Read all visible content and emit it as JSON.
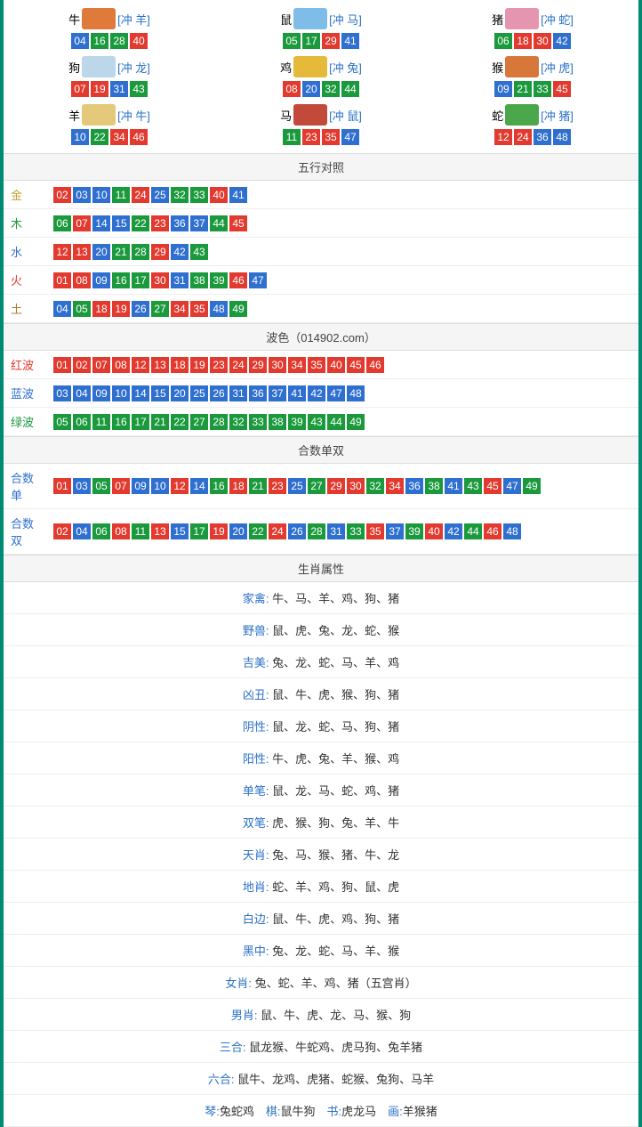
{
  "colors": {
    "red": "#e23a2f",
    "blue": "#2e6fd0",
    "green": "#1a9a3c",
    "page_border": "#008a72",
    "bg": "#ffffff",
    "header_bg": "#f5f5f5",
    "grid_border": "#dddddd",
    "text": "#333333",
    "link": "#2b71c7"
  },
  "num_colors": {
    "01": "red",
    "02": "red",
    "07": "red",
    "08": "red",
    "12": "red",
    "13": "red",
    "18": "red",
    "19": "red",
    "23": "red",
    "24": "red",
    "29": "red",
    "30": "red",
    "34": "red",
    "35": "red",
    "40": "red",
    "45": "red",
    "46": "red",
    "03": "blue",
    "04": "blue",
    "09": "blue",
    "10": "blue",
    "14": "blue",
    "15": "blue",
    "20": "blue",
    "25": "blue",
    "26": "blue",
    "31": "blue",
    "36": "blue",
    "37": "blue",
    "41": "blue",
    "42": "blue",
    "47": "blue",
    "48": "blue",
    "05": "green",
    "06": "green",
    "11": "green",
    "16": "green",
    "17": "green",
    "21": "green",
    "22": "green",
    "27": "green",
    "28": "green",
    "32": "green",
    "33": "green",
    "38": "green",
    "39": "green",
    "43": "green",
    "44": "green",
    "49": "green"
  },
  "zodiac": [
    {
      "label": "牛",
      "clash": "[冲 羊]",
      "icon_color": "#e07a3a",
      "nums": [
        "04",
        "16",
        "28",
        "40"
      ]
    },
    {
      "label": "鼠",
      "clash": "[冲 马]",
      "icon_color": "#7dbde8",
      "nums": [
        "05",
        "17",
        "29",
        "41"
      ]
    },
    {
      "label": "猪",
      "clash": "[冲 蛇]",
      "icon_color": "#e695b0",
      "nums": [
        "06",
        "18",
        "30",
        "42"
      ]
    },
    {
      "label": "狗",
      "clash": "[冲 龙]",
      "icon_color": "#bcd6ea",
      "nums": [
        "07",
        "19",
        "31",
        "43"
      ]
    },
    {
      "label": "鸡",
      "clash": "[冲 兔]",
      "icon_color": "#e5b93a",
      "nums": [
        "08",
        "20",
        "32",
        "44"
      ]
    },
    {
      "label": "猴",
      "clash": "[冲 虎]",
      "icon_color": "#d7773a",
      "nums": [
        "09",
        "21",
        "33",
        "45"
      ]
    },
    {
      "label": "羊",
      "clash": "[冲 牛]",
      "icon_color": "#e5c97a",
      "nums": [
        "10",
        "22",
        "34",
        "46"
      ]
    },
    {
      "label": "马",
      "clash": "[冲 鼠]",
      "icon_color": "#c24a3a",
      "nums": [
        "11",
        "23",
        "35",
        "47"
      ]
    },
    {
      "label": "蛇",
      "clash": "[冲 猪]",
      "icon_color": "#4aa84a",
      "nums": [
        "12",
        "24",
        "36",
        "48"
      ]
    }
  ],
  "sections": [
    {
      "title": "五行对照",
      "rows": [
        {
          "label": "金",
          "label_color": "#c8a03a",
          "nums": [
            "02",
            "03",
            "10",
            "11",
            "24",
            "25",
            "32",
            "33",
            "40",
            "41"
          ]
        },
        {
          "label": "木",
          "label_color": "#1a9a3c",
          "nums": [
            "06",
            "07",
            "14",
            "15",
            "22",
            "23",
            "36",
            "37",
            "44",
            "45"
          ]
        },
        {
          "label": "水",
          "label_color": "#2e6fd0",
          "nums": [
            "12",
            "13",
            "20",
            "21",
            "28",
            "29",
            "42",
            "43"
          ]
        },
        {
          "label": "火",
          "label_color": "#e23a2f",
          "nums": [
            "01",
            "08",
            "09",
            "16",
            "17",
            "30",
            "31",
            "38",
            "39",
            "46",
            "47"
          ]
        },
        {
          "label": "土",
          "label_color": "#b07a2a",
          "nums": [
            "04",
            "05",
            "18",
            "19",
            "26",
            "27",
            "34",
            "35",
            "48",
            "49"
          ]
        }
      ]
    },
    {
      "title": "波色（014902.com）",
      "rows": [
        {
          "label": "红波",
          "label_color": "#e23a2f",
          "nums": [
            "01",
            "02",
            "07",
            "08",
            "12",
            "13",
            "18",
            "19",
            "23",
            "24",
            "29",
            "30",
            "34",
            "35",
            "40",
            "45",
            "46"
          ]
        },
        {
          "label": "蓝波",
          "label_color": "#2e6fd0",
          "nums": [
            "03",
            "04",
            "09",
            "10",
            "14",
            "15",
            "20",
            "25",
            "26",
            "31",
            "36",
            "37",
            "41",
            "42",
            "47",
            "48"
          ]
        },
        {
          "label": "绿波",
          "label_color": "#1a9a3c",
          "nums": [
            "05",
            "06",
            "11",
            "16",
            "17",
            "21",
            "22",
            "27",
            "28",
            "32",
            "33",
            "38",
            "39",
            "43",
            "44",
            "49"
          ]
        }
      ]
    },
    {
      "title": "合数单双",
      "rows": [
        {
          "label": "合数单",
          "label_color": "#2e6fd0",
          "nums": [
            "01",
            "03",
            "05",
            "07",
            "09",
            "10",
            "12",
            "14",
            "16",
            "18",
            "21",
            "23",
            "25",
            "27",
            "29",
            "30",
            "32",
            "34",
            "36",
            "38",
            "41",
            "43",
            "45",
            "47",
            "49"
          ]
        },
        {
          "label": "合数双",
          "label_color": "#2e6fd0",
          "nums": [
            "02",
            "04",
            "06",
            "08",
            "11",
            "13",
            "15",
            "17",
            "19",
            "20",
            "22",
            "24",
            "26",
            "28",
            "31",
            "33",
            "35",
            "37",
            "39",
            "40",
            "42",
            "44",
            "46",
            "48"
          ]
        }
      ]
    }
  ],
  "attr_section": {
    "title": "生肖属性",
    "rows": [
      {
        "label": "家禽:",
        "value": "牛、马、羊、鸡、狗、猪"
      },
      {
        "label": "野兽:",
        "value": "鼠、虎、兔、龙、蛇、猴"
      },
      {
        "label": "吉美:",
        "value": "兔、龙、蛇、马、羊、鸡"
      },
      {
        "label": "凶丑:",
        "value": "鼠、牛、虎、猴、狗、猪"
      },
      {
        "label": "阴性:",
        "value": "鼠、龙、蛇、马、狗、猪"
      },
      {
        "label": "阳性:",
        "value": "牛、虎、兔、羊、猴、鸡"
      },
      {
        "label": "单笔:",
        "value": "鼠、龙、马、蛇、鸡、猪"
      },
      {
        "label": "双笔:",
        "value": "虎、猴、狗、兔、羊、牛"
      },
      {
        "label": "天肖:",
        "value": "兔、马、猴、猪、牛、龙"
      },
      {
        "label": "地肖:",
        "value": "蛇、羊、鸡、狗、鼠、虎"
      },
      {
        "label": "白边:",
        "value": "鼠、牛、虎、鸡、狗、猪"
      },
      {
        "label": "黑中:",
        "value": "兔、龙、蛇、马、羊、猴"
      },
      {
        "label": "女肖:",
        "value": "兔、蛇、羊、鸡、猪（五宫肖）"
      },
      {
        "label": "男肖:",
        "value": "鼠、牛、虎、龙、马、猴、狗"
      },
      {
        "label": "三合:",
        "value": "鼠龙猴、牛蛇鸡、虎马狗、兔羊猪"
      },
      {
        "label": "六合:",
        "value": "鼠牛、龙鸡、虎猪、蛇猴、兔狗、马羊"
      }
    ],
    "footer_parts": [
      {
        "label": "琴:",
        "value": "兔蛇鸡"
      },
      {
        "label": "棋:",
        "value": "鼠牛狗"
      },
      {
        "label": "书:",
        "value": "虎龙马"
      },
      {
        "label": "画:",
        "value": "羊猴猪"
      }
    ]
  }
}
